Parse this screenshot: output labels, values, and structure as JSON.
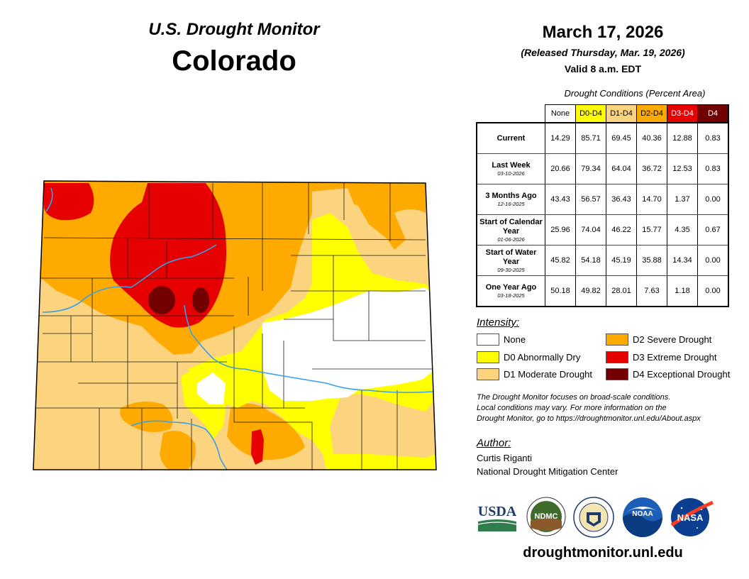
{
  "header": {
    "line1": "U.S. Drought Monitor",
    "line2": "Colorado",
    "date": "March 17, 2026",
    "released": "(Released Thursday, Mar. 19, 2026)",
    "valid": "Valid 8 a.m. EDT"
  },
  "table": {
    "caption": "Drought Conditions (Percent Area)",
    "columns": [
      "None",
      "D0-D4",
      "D1-D4",
      "D2-D4",
      "D3-D4",
      "D4"
    ],
    "column_colors": [
      "#ffffff",
      "#ffff00",
      "#fcd37f",
      "#ffaa00",
      "#e60000",
      "#730000"
    ],
    "rows": [
      {
        "label": "Current",
        "sub": "",
        "values": [
          "14.29",
          "85.71",
          "69.45",
          "40.36",
          "12.88",
          "0.83"
        ]
      },
      {
        "label": "Last Week",
        "sub": "03-10-2026",
        "values": [
          "20.66",
          "79.34",
          "64.04",
          "36.72",
          "12.53",
          "0.83"
        ]
      },
      {
        "label": "3 Months Ago",
        "sub": "12-16-2025",
        "values": [
          "43.43",
          "56.57",
          "36.43",
          "14.70",
          "1.37",
          "0.00"
        ]
      },
      {
        "label": "Start of Calendar Year",
        "sub": "01-06-2026",
        "values": [
          "25.96",
          "74.04",
          "46.22",
          "15.77",
          "4.35",
          "0.67"
        ]
      },
      {
        "label": "Start of Water Year",
        "sub": "09-30-2025",
        "values": [
          "45.82",
          "54.18",
          "45.19",
          "35.88",
          "14.34",
          "0.00"
        ]
      },
      {
        "label": "One Year Ago",
        "sub": "03-18-2025",
        "values": [
          "50.18",
          "49.82",
          "28.01",
          "7.63",
          "1.18",
          "0.00"
        ]
      }
    ]
  },
  "legend": {
    "title": "Intensity:",
    "items": [
      {
        "label": "None",
        "color": "#ffffff"
      },
      {
        "label": "D0 Abnormally Dry",
        "color": "#ffff00"
      },
      {
        "label": "D1 Moderate Drought",
        "color": "#fcd37f"
      },
      {
        "label": "D2 Severe Drought",
        "color": "#ffaa00"
      },
      {
        "label": "D3 Extreme Drought",
        "color": "#e60000"
      },
      {
        "label": "D4 Exceptional Drought",
        "color": "#730000"
      }
    ]
  },
  "note": {
    "line1": "The Drought Monitor focuses on broad-scale conditions.",
    "line2": "Local conditions may vary. For more information on the",
    "line3": "Drought Monitor, go to https://droughtmonitor.unl.edu/About.aspx"
  },
  "author": {
    "title": "Author:",
    "name": "Curtis Riganti",
    "org": "National Drought Mitigation Center"
  },
  "logos": {
    "usda": "USDA",
    "ndmc": "NDMC",
    "noaa": "NOAA",
    "nasa": "NASA"
  },
  "website": "droughtmonitor.unl.edu"
}
